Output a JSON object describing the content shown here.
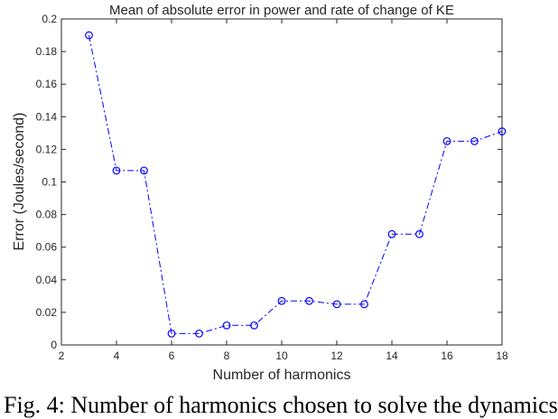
{
  "chart_data": {
    "type": "line",
    "title": "Mean of absolute error in power and rate of change of KE",
    "xlabel": "Number of harmonics",
    "ylabel": "Error (Joules/second)",
    "xlim": [
      2,
      18
    ],
    "ylim": [
      0,
      0.2
    ],
    "x_ticks": [
      2,
      4,
      6,
      8,
      10,
      12,
      14,
      16,
      18
    ],
    "y_ticks": [
      0,
      0.02,
      0.04,
      0.06,
      0.08,
      0.1,
      0.12,
      0.14,
      0.16,
      0.18,
      0.2
    ],
    "grid": false,
    "series": [
      {
        "color": "#0000ff",
        "line_style": "dash-dot",
        "marker": "circle",
        "x": [
          3,
          4,
          5,
          6,
          7,
          8,
          9,
          10,
          11,
          12,
          13,
          14,
          15,
          16,
          17,
          18
        ],
        "y": [
          0.19,
          0.107,
          0.107,
          0.007,
          0.007,
          0.012,
          0.012,
          0.027,
          0.027,
          0.025,
          0.025,
          0.068,
          0.068,
          0.125,
          0.125,
          0.131
        ]
      }
    ]
  },
  "caption": "Fig. 4: Number of harmonics chosen to solve the dynamics"
}
